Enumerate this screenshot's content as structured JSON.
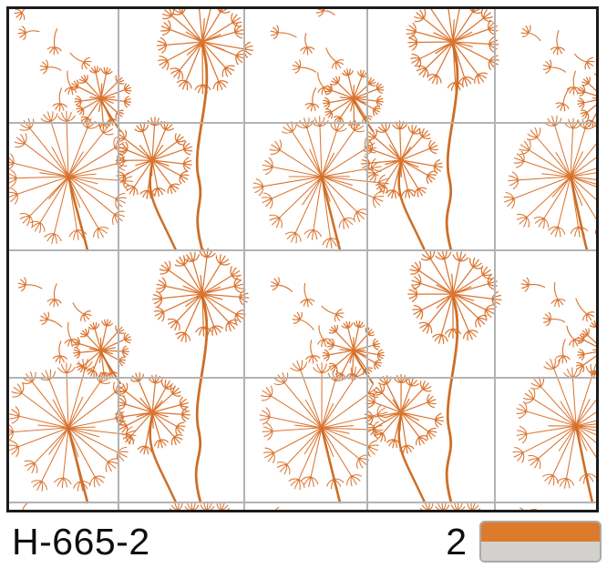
{
  "product": {
    "code": "H-665-2",
    "quantity": "2",
    "swatch": {
      "top_color": "#DE7A2B",
      "bottom_color": "#D3D1CE",
      "border_color": "#ACA9A5"
    }
  },
  "pattern": {
    "name": "dandelion-seeds-tile-mural",
    "tiles": {
      "columns": 5,
      "rows": 4
    },
    "colors": {
      "floral": "#DB7632",
      "stem": "#CE6E26",
      "seam": "#B3B3B3",
      "frame": "#1A1A1A",
      "tile_bg": "#FFFFFF"
    }
  }
}
